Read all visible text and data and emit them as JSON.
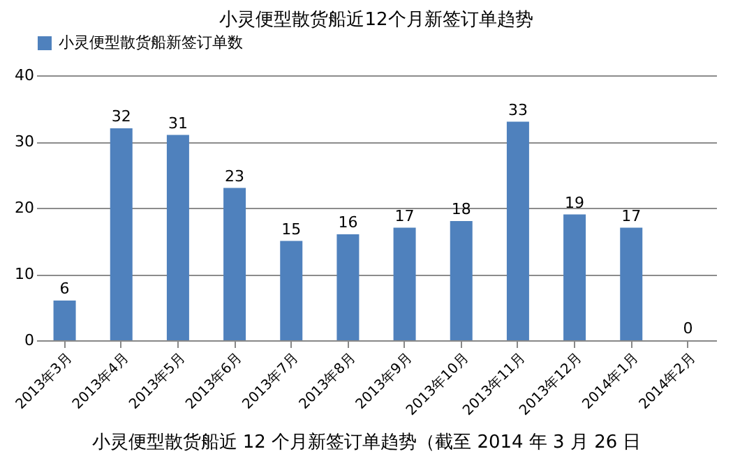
{
  "chart_data": {
    "type": "bar",
    "title": "小灵便型散货船近12个月新签订单趋势",
    "categories": [
      "2013年3月",
      "2013年4月",
      "2013年5月",
      "2013年6月",
      "2013年7月",
      "2013年8月",
      "2013年9月",
      "2013年10月",
      "2013年11月",
      "2013年12月",
      "2014年1月",
      "2014年2月"
    ],
    "series": [
      {
        "name": "小灵便型散货船新签订单数",
        "color": "#4f81bd",
        "values": [
          6,
          32,
          31,
          23,
          15,
          16,
          17,
          18,
          33,
          19,
          17,
          0
        ]
      }
    ],
    "ylim": [
      0,
      40
    ],
    "yticks": [
      0,
      10,
      20,
      30,
      40
    ],
    "grid": "y",
    "legend": "top",
    "data_labels": true,
    "annotations": [
      "小灵便型散货船近 12 个月新签订单趋势（截至 2014 年 3 月 26 日"
    ]
  }
}
